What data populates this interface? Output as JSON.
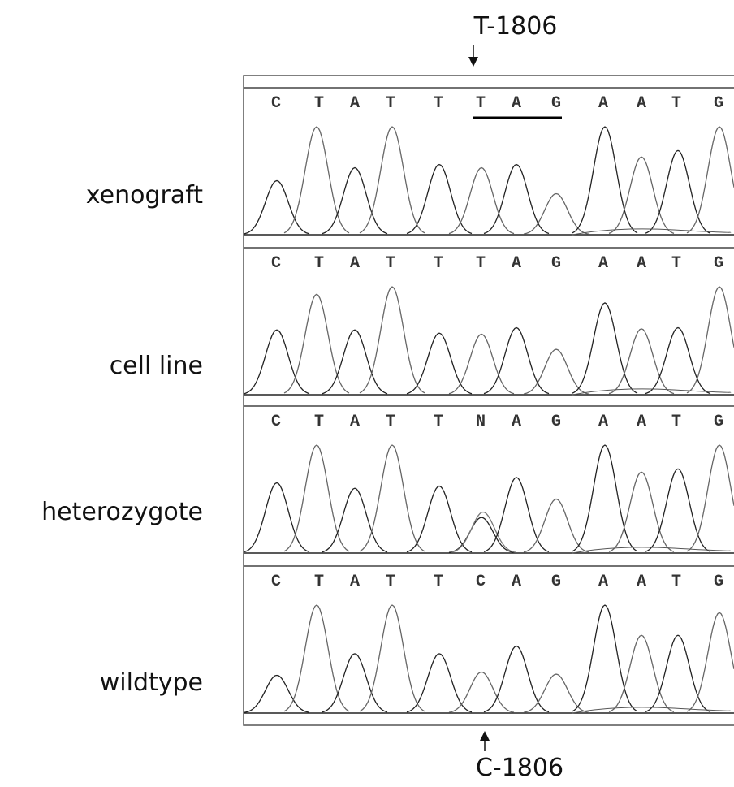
{
  "top_label": "T-1806",
  "bottom_label": "C-1806",
  "panels": [
    {
      "label": "xenograft",
      "bases": [
        "C",
        "T",
        "A",
        "T",
        "T",
        "T",
        "A",
        "G",
        "A",
        "A",
        "T",
        "G"
      ]
    },
    {
      "label": "cell line",
      "bases": [
        "C",
        "T",
        "A",
        "T",
        "T",
        "T",
        "A",
        "G",
        "A",
        "A",
        "T",
        "G"
      ]
    },
    {
      "label": "heterozygote",
      "bases": [
        "C",
        "T",
        "A",
        "T",
        "T",
        "N",
        "A",
        "G",
        "A",
        "A",
        "T",
        "G"
      ]
    },
    {
      "label": "wildtype",
      "bases": [
        "C",
        "T",
        "A",
        "T",
        "T",
        "C",
        "A",
        "G",
        "A",
        "A",
        "T",
        "G"
      ]
    }
  ]
}
